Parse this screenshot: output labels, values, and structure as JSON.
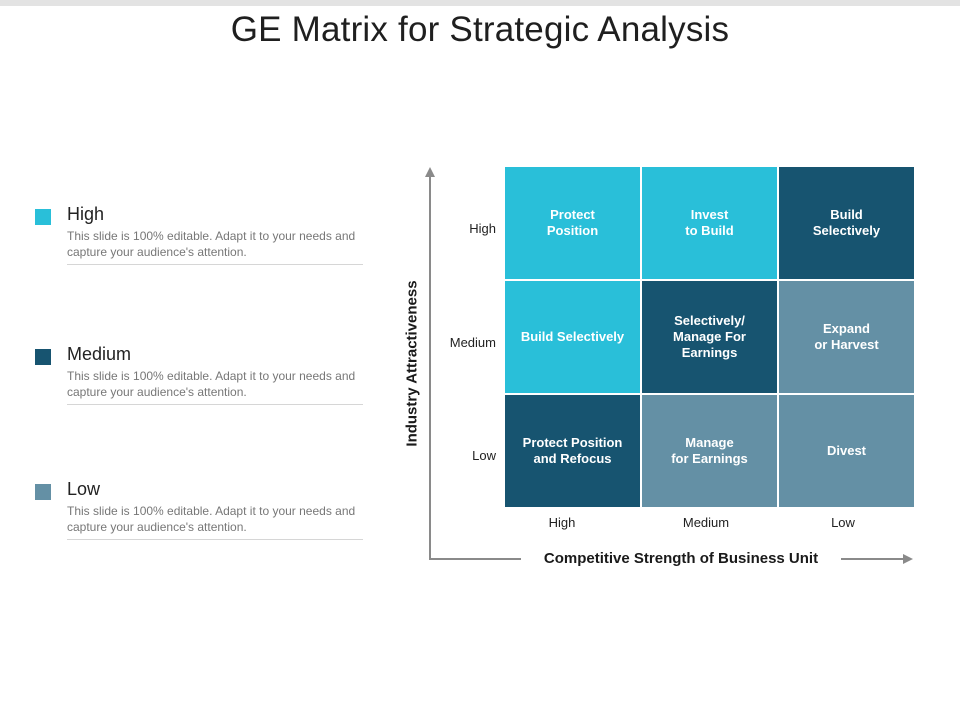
{
  "title": "GE Matrix for Strategic Analysis",
  "colors": {
    "high": "#29BFD9",
    "medium": "#175470",
    "low": "#6490A5",
    "axis": "#8a8a8a"
  },
  "legend": [
    {
      "label": "High",
      "level": "high",
      "desc": "This slide is 100% editable. Adapt it to your needs and capture your audience's attention."
    },
    {
      "label": "Medium",
      "level": "medium",
      "desc": "This slide is 100% editable. Adapt it to your needs and capture your audience's attention."
    },
    {
      "label": "Low",
      "level": "low",
      "desc": "This slide is 100% editable. Adapt it to your needs and capture your audience's attention."
    }
  ],
  "matrix": {
    "y_axis_title": "Industry Attractiveness",
    "x_axis_title": "Competitive Strength of Business Unit",
    "y_ticks": [
      "High",
      "Medium",
      "Low"
    ],
    "x_ticks": [
      "High",
      "Medium",
      "Low"
    ],
    "cells": [
      {
        "text": "Protect\nPosition",
        "level": "high"
      },
      {
        "text": "Invest\nto Build",
        "level": "high"
      },
      {
        "text": "Build\nSelectively",
        "level": "medium"
      },
      {
        "text": "Build Selectively",
        "level": "high"
      },
      {
        "text": "Selectively/\nManage For\nEarnings",
        "level": "medium"
      },
      {
        "text": "Expand\nor Harvest",
        "level": "low"
      },
      {
        "text": "Protect Position\nand Refocus",
        "level": "medium"
      },
      {
        "text": "Manage\nfor Earnings",
        "level": "low"
      },
      {
        "text": "Divest",
        "level": "low"
      }
    ]
  }
}
